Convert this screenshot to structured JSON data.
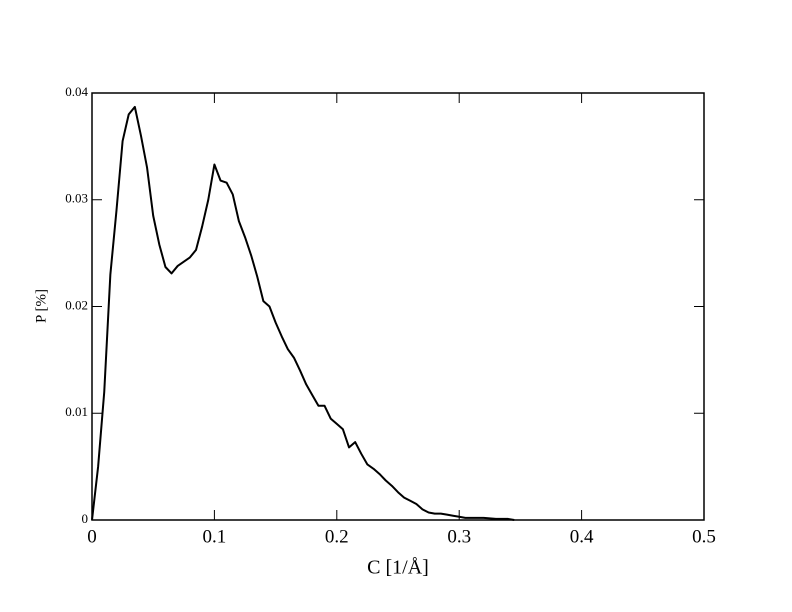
{
  "chart_data": {
    "type": "line",
    "x_label": "C [1/Å]",
    "y_label": "P [%]",
    "series": [
      {
        "color": "#000000",
        "x": [
          0,
          0.005,
          0.01,
          0.015,
          0.02,
          0.025,
          0.03,
          0.035,
          0.04,
          0.045,
          0.05,
          0.055,
          0.06,
          0.065,
          0.07,
          0.075,
          0.08,
          0.085,
          0.09,
          0.095,
          0.1,
          0.105,
          0.11,
          0.115,
          0.12,
          0.125,
          0.13,
          0.135,
          0.14,
          0.145,
          0.15,
          0.155,
          0.16,
          0.165,
          0.17,
          0.175,
          0.18,
          0.185,
          0.19,
          0.195,
          0.2,
          0.205,
          0.21,
          0.215,
          0.22,
          0.225,
          0.23,
          0.235,
          0.24,
          0.245,
          0.25,
          0.255,
          0.26,
          0.265,
          0.27,
          0.275,
          0.28,
          0.285,
          0.29,
          0.295,
          0.3,
          0.305,
          0.31,
          0.32,
          0.33,
          0.34,
          0.345
        ],
        "values": [
          0,
          0.005,
          0.012,
          0.023,
          0.029,
          0.0355,
          0.038,
          0.0387,
          0.036,
          0.033,
          0.0285,
          0.0258,
          0.0237,
          0.0231,
          0.0238,
          0.0242,
          0.0246,
          0.0253,
          0.0275,
          0.03,
          0.0333,
          0.0318,
          0.0316,
          0.0305,
          0.028,
          0.0265,
          0.0248,
          0.0228,
          0.0205,
          0.02,
          0.0185,
          0.0172,
          0.016,
          0.0152,
          0.014,
          0.0127,
          0.0117,
          0.0107,
          0.0107,
          0.0095,
          0.009,
          0.0085,
          0.0068,
          0.0073,
          0.0062,
          0.0052,
          0.0048,
          0.0043,
          0.0037,
          0.0032,
          0.0026,
          0.0021,
          0.0018,
          0.0015,
          0.001,
          0.0007,
          0.0006,
          0.0006,
          0.0005,
          0.0004,
          0.0003,
          0.0002,
          0.0002,
          0.0002,
          0.0001,
          0.0001,
          0
        ]
      }
    ],
    "xlim": [
      0,
      0.5
    ],
    "xticks": [
      0,
      0.1,
      0.2,
      0.3,
      0.4,
      0.5
    ],
    "ylim": [
      0,
      0.04
    ],
    "yticks": [
      0,
      0.01,
      0.02,
      0.03,
      0.04
    ]
  }
}
